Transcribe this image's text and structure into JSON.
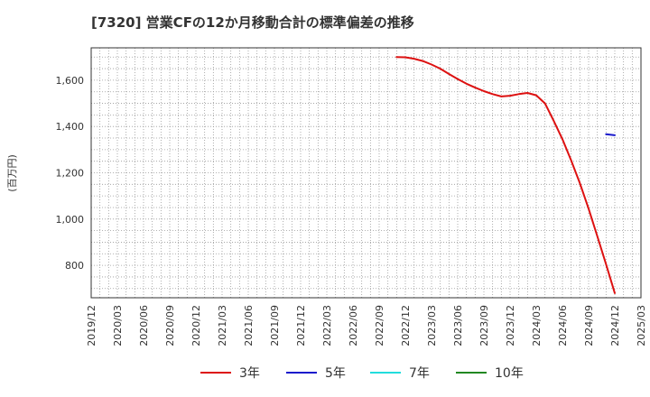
{
  "title": "[7320]  営業CFの12か月移動合計の標準偏差の推移",
  "chart_data": {
    "type": "line",
    "title": "[7320]  営業CFの12か月移動合計の標準偏差の推移",
    "ylabel": "(百万円)",
    "xlabel": "",
    "ylim": [
      660,
      1740
    ],
    "yticks": [
      800,
      1000,
      1200,
      1400,
      1600
    ],
    "ytick_labels": [
      "800",
      "1,000",
      "1,200",
      "1,400",
      "1,600"
    ],
    "x_range": [
      "2019-12",
      "2025-03"
    ],
    "xtick_labels": [
      "2019/12",
      "2020/03",
      "2020/06",
      "2020/09",
      "2020/12",
      "2021/03",
      "2021/06",
      "2021/09",
      "2021/12",
      "2022/03",
      "2022/06",
      "2022/09",
      "2022/12",
      "2023/03",
      "2023/06",
      "2023/09",
      "2023/12",
      "2024/03",
      "2024/06",
      "2024/09",
      "2024/12",
      "2025/03"
    ],
    "grid": true,
    "legend_position": "bottom",
    "series": [
      {
        "name": "3年",
        "color": "#dd1111",
        "points": [
          [
            "2022-11",
            1700
          ],
          [
            "2022-12",
            1699
          ],
          [
            "2023-01",
            1693
          ],
          [
            "2023-02",
            1683
          ],
          [
            "2023-03",
            1668
          ],
          [
            "2023-04",
            1650
          ],
          [
            "2023-05",
            1627
          ],
          [
            "2023-06",
            1605
          ],
          [
            "2023-07",
            1585
          ],
          [
            "2023-08",
            1568
          ],
          [
            "2023-09",
            1553
          ],
          [
            "2023-10",
            1540
          ],
          [
            "2023-11",
            1530
          ],
          [
            "2023-12",
            1533
          ],
          [
            "2024-01",
            1540
          ],
          [
            "2024-02",
            1545
          ],
          [
            "2024-03",
            1535
          ],
          [
            "2024-04",
            1500
          ],
          [
            "2024-05",
            1425
          ],
          [
            "2024-06",
            1345
          ],
          [
            "2024-07",
            1253
          ],
          [
            "2024-08",
            1155
          ],
          [
            "2024-09",
            1045
          ],
          [
            "2024-10",
            925
          ],
          [
            "2024-11",
            805
          ],
          [
            "2024-12",
            680
          ]
        ]
      },
      {
        "name": "5年",
        "color": "#1a1acc",
        "points": [
          [
            "2024-11",
            1367
          ],
          [
            "2024-12",
            1362
          ]
        ]
      },
      {
        "name": "7年",
        "color": "#22dddd",
        "points": []
      },
      {
        "name": "10年",
        "color": "#228822",
        "points": []
      }
    ]
  }
}
